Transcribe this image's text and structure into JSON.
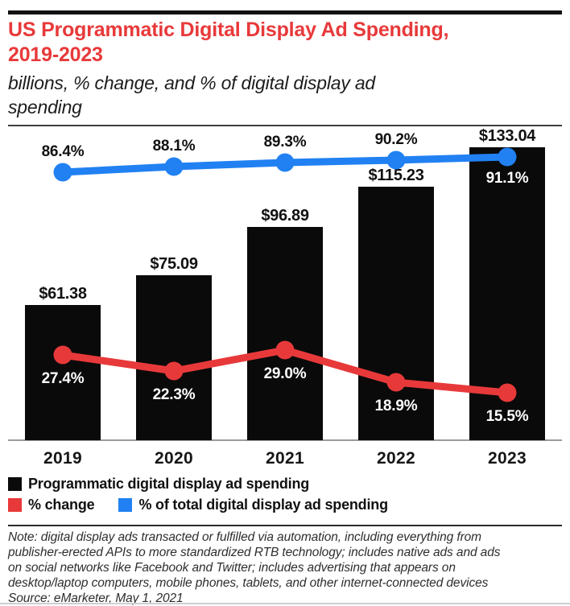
{
  "header": {
    "title_lines": [
      "US Programmatic Digital Display Ad Spending,",
      "2019-2023"
    ],
    "subtitle_lines": [
      "billions, % change, and % of digital display ad",
      "spending"
    ]
  },
  "chart_data": {
    "type": "bar",
    "subtype": "bar-with-two-line-series",
    "title": "US Programmatic Digital Display Ad Spending, 2019-2023",
    "subtitle": "billions, % change, and % of digital display ad spending",
    "categories": [
      "2019",
      "2020",
      "2021",
      "2022",
      "2023"
    ],
    "series": [
      {
        "name": "Programmatic digital display ad spending",
        "type": "bar",
        "unit": "billions of US dollars",
        "values": [
          61.38,
          75.09,
          96.89,
          115.23,
          133.04
        ],
        "labels": [
          "$61.38",
          "$75.09",
          "$96.89",
          "$115.23",
          "$133.04"
        ],
        "color": "#0a0a0a"
      },
      {
        "name": "% change",
        "type": "line",
        "unit": "percent",
        "values": [
          27.4,
          22.3,
          29.0,
          18.9,
          15.5
        ],
        "labels": [
          "27.4%",
          "22.3%",
          "29.0%",
          "18.9%",
          "15.5%"
        ],
        "color": "#e8393a"
      },
      {
        "name": "% of total digital display ad spending",
        "type": "line",
        "unit": "percent",
        "values": [
          86.4,
          88.1,
          89.3,
          90.2,
          91.1
        ],
        "labels": [
          "86.4%",
          "88.1%",
          "89.3%",
          "90.2%",
          "91.1%"
        ],
        "color": "#2181f2"
      }
    ],
    "layout_hints": {
      "grid": false,
      "y_axes_shown": false,
      "bar_labels_position": "above-bars",
      "pct_change_label_positions": [
        "below",
        "below",
        "below",
        "below",
        "below"
      ],
      "pct_change_label_color": "#ffffff",
      "pct_total_label_positions": [
        "above",
        "above",
        "above",
        "above",
        "below-inside-bar"
      ],
      "legend_position": "bottom-left",
      "axis_line_color": "#9b9b9b"
    }
  },
  "legend": {
    "items": [
      {
        "label": "Programmatic digital display ad spending",
        "color": "#0a0a0a",
        "row": 1
      },
      {
        "label": "% change",
        "color": "#e8393a",
        "row": 2
      },
      {
        "label": "% of total digital display ad spending",
        "color": "#2181f2",
        "row": 2
      }
    ]
  },
  "footer": {
    "note_lines": [
      "Note: digital display ads transacted or fulfilled via automation, including everything from",
      "publisher-erected APIs to more standardized RTB technology; includes native ads and ads",
      "on social networks like Facebook and Twitter; includes advertising that appears on",
      "desktop/laptop computers, mobile phones, tablets, and other internet-connected devices",
      "Source: eMarketer, May 1, 2021"
    ]
  },
  "colors": {
    "accent_red": "#e8393a",
    "accent_blue": "#2181f2",
    "bar_black": "#0a0a0a"
  }
}
